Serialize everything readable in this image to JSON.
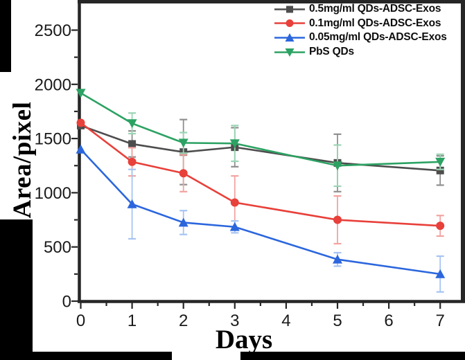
{
  "chart_data": {
    "type": "line",
    "title": "",
    "xlabel": "Days",
    "ylabel": "Area/pixel",
    "x": [
      0,
      1,
      2,
      3,
      5,
      7
    ],
    "x_ticks": [
      0,
      1,
      2,
      3,
      4,
      5,
      6,
      7
    ],
    "x_minor_ticks": [
      0.5,
      1.5,
      2.5,
      3.5,
      4.5,
      5.5,
      6.5
    ],
    "y_ticks": [
      0,
      500,
      1000,
      1500,
      2000,
      2500
    ],
    "y_minor_ticks": [
      250,
      750,
      1250,
      1750,
      2250
    ],
    "xlim": [
      0,
      7.48
    ],
    "ylim": [
      0,
      2765
    ],
    "grid": false,
    "error_bars": true,
    "legend_position": "top-right",
    "axis_color": "#262626",
    "tick_label_color": "#1a1a1a",
    "series": [
      {
        "name": "0.5mg/ml QDs-ADSC-Exos",
        "marker": "square",
        "color": "#4d4d4d",
        "error_color": "#8f8f8f",
        "values": [
          1620,
          1450,
          1375,
          1420,
          1275,
          1205
        ],
        "errors": [
          0,
          120,
          300,
          180,
          265,
          135
        ]
      },
      {
        "name": "0.1mg/ml QDs-ADSC-Exos",
        "marker": "circle",
        "color": "#e8403a",
        "error_color": "#f2a3a0",
        "values": [
          1645,
          1285,
          1180,
          910,
          750,
          695
        ],
        "errors": [
          0,
          130,
          170,
          245,
          220,
          95
        ]
      },
      {
        "name": "0.05mg/ml QDs-ADSC-Exos",
        "marker": "triangle-up",
        "color": "#2b66dd",
        "error_color": "#a6c4f1",
        "values": [
          1400,
          895,
          725,
          685,
          385,
          250
        ],
        "errors": [
          0,
          320,
          110,
          55,
          62,
          165
        ]
      },
      {
        "name": "PbS QDs",
        "marker": "triangle-down",
        "color": "#2ca263",
        "error_color": "#9bd4b4",
        "values": [
          1920,
          1640,
          1460,
          1455,
          1250,
          1285
        ],
        "errors": [
          0,
          95,
          95,
          165,
          190,
          70
        ]
      }
    ]
  }
}
